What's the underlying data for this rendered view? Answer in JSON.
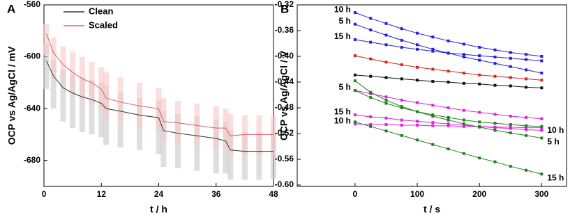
{
  "chart_data": [
    {
      "type": "line",
      "panel": "A",
      "x_label": "t / h",
      "y_label": "OCP vs Ag/AgCl / mV",
      "xlim": [
        0,
        48
      ],
      "xticks": [
        0,
        12,
        24,
        36,
        48
      ],
      "ylim": [
        -700,
        -560
      ],
      "yticks": [
        -560,
        -600,
        -640,
        -680
      ],
      "legend": "upper left",
      "x": [
        0.5,
        2,
        4,
        6,
        8,
        10,
        12,
        13,
        16,
        20,
        24,
        25,
        28,
        32,
        36,
        38,
        39,
        42,
        45,
        48
      ],
      "series": [
        {
          "name": "Clean",
          "color": "#333333",
          "band_color": "#c8c8c8",
          "values": [
            -603,
            -615,
            -624,
            -628,
            -631,
            -633,
            -636,
            -640,
            -642,
            -645,
            -647,
            -657,
            -659,
            -661,
            -663,
            -665,
            -672,
            -673,
            -673,
            -673
          ],
          "lower": [
            -625,
            -640,
            -650,
            -655,
            -658,
            -660,
            -662,
            -668,
            -670,
            -672,
            -675,
            -685,
            -686,
            -688,
            -690,
            -690,
            -695,
            -695,
            -695,
            -694
          ],
          "upper": [
            -590,
            -602,
            -610,
            -614,
            -616,
            -618,
            -620,
            -622,
            -628,
            -632,
            -634,
            -642,
            -644,
            -646,
            -648,
            -650,
            -656,
            -658,
            -658,
            -658
          ]
        },
        {
          "name": "Scaled",
          "color": "#e06060",
          "band_color": "#f8c8c8",
          "values": [
            -582,
            -597,
            -606,
            -612,
            -617,
            -620,
            -625,
            -632,
            -635,
            -638,
            -640,
            -650,
            -651,
            -653,
            -655,
            -655,
            -661,
            -660,
            -660,
            -660
          ],
          "lower": [
            -598,
            -612,
            -622,
            -628,
            -633,
            -636,
            -640,
            -648,
            -651,
            -654,
            -656,
            -664,
            -666,
            -668,
            -670,
            -670,
            -676,
            -676,
            -676,
            -676
          ],
          "upper": [
            -575,
            -585,
            -592,
            -596,
            -600,
            -604,
            -608,
            -612,
            -616,
            -620,
            -624,
            -632,
            -634,
            -636,
            -638,
            -640,
            -644,
            -645,
            -645,
            -645
          ]
        }
      ]
    },
    {
      "type": "line-marker",
      "panel": "B",
      "x_label": "t / s",
      "y_label": "OCP vs Ag/AgCl / V",
      "xlim": [
        -93,
        340
      ],
      "xticks": [
        0,
        100,
        200,
        300
      ],
      "ylim": [
        -0.6,
        -0.32
      ],
      "yticks": [
        -0.32,
        -0.36,
        {
          "value": -0.4,
          "label": "-0.40"
        },
        -0.44,
        -0.48,
        -0.52,
        -0.56,
        {
          "value": -0.6,
          "label": "-0.60"
        }
      ],
      "x": [
        0,
        25,
        50,
        75,
        100,
        125,
        150,
        175,
        200,
        225,
        250,
        275,
        300
      ],
      "series": [
        {
          "name": "10 h",
          "color": "#2020e0",
          "label_side": "start",
          "values": [
            -0.332,
            -0.341,
            -0.349,
            -0.357,
            -0.364,
            -0.37,
            -0.376,
            -0.381,
            -0.386,
            -0.39,
            -0.394,
            -0.397,
            -0.4
          ]
        },
        {
          "name": "5 h",
          "color": "#2020e0",
          "label_side": "start",
          "values": [
            -0.35,
            -0.359,
            -0.367,
            -0.375,
            -0.382,
            -0.389,
            -0.395,
            -0.401,
            -0.406,
            -0.411,
            -0.416,
            -0.421,
            -0.426
          ]
        },
        {
          "name": "15 h",
          "color": "#2020e0",
          "label_side": "start",
          "values": [
            -0.374,
            -0.378,
            -0.382,
            -0.386,
            -0.389,
            -0.392,
            -0.395,
            -0.397,
            -0.399,
            -0.401,
            -0.403,
            -0.405,
            -0.407
          ]
        },
        {
          "color": "#e02020",
          "values": [
            -0.399,
            -0.404,
            -0.409,
            -0.413,
            -0.417,
            -0.42,
            -0.423,
            -0.426,
            -0.429,
            -0.431,
            -0.433,
            -0.435,
            -0.437
          ]
        },
        {
          "color": "#111111",
          "values": [
            -0.429,
            -0.431,
            -0.433,
            -0.435,
            -0.437,
            -0.439,
            -0.44,
            -0.442,
            -0.443,
            -0.445,
            -0.446,
            -0.448,
            -0.449
          ]
        },
        {
          "name": "5 h",
          "color": "#e020e0",
          "label_side": "start",
          "values": [
            -0.453,
            -0.458,
            -0.463,
            -0.468,
            -0.472,
            -0.476,
            -0.48,
            -0.484,
            -0.487,
            -0.49,
            -0.493,
            -0.495,
            -0.497
          ]
        },
        {
          "name": "15 h",
          "color": "#e020e0",
          "label_side": "start",
          "values": [
            -0.491,
            -0.494,
            -0.496,
            -0.499,
            -0.501,
            -0.503,
            -0.505,
            -0.507,
            -0.509,
            -0.511,
            -0.512,
            -0.514,
            -0.515
          ]
        },
        {
          "name": "10 h",
          "color": "#e020e0",
          "label_side": "start",
          "values": [
            -0.505,
            -0.506,
            -0.506,
            -0.507,
            -0.507,
            -0.508,
            -0.508,
            -0.509,
            -0.509,
            -0.51,
            -0.51,
            -0.511,
            -0.511
          ]
        },
        {
          "name": "5 h",
          "color": "#208020",
          "label_side": "end",
          "values": [
            -0.438,
            -0.456,
            -0.468,
            -0.478,
            -0.486,
            -0.493,
            -0.499,
            -0.505,
            -0.51,
            -0.515,
            -0.519,
            -0.523,
            -0.527
          ]
        },
        {
          "name": "10 h",
          "color": "#208020",
          "label_side": "end",
          "values": [
            -0.453,
            -0.464,
            -0.473,
            -0.48,
            -0.486,
            -0.491,
            -0.495,
            -0.499,
            -0.502,
            -0.504,
            -0.506,
            -0.508,
            -0.509
          ]
        },
        {
          "name": "15 h",
          "color": "#208020",
          "label_side": "end",
          "values": [
            -0.502,
            -0.509,
            -0.516,
            -0.523,
            -0.53,
            -0.537,
            -0.544,
            -0.551,
            -0.558,
            -0.564,
            -0.571,
            -0.577,
            -0.583
          ]
        }
      ]
    }
  ]
}
